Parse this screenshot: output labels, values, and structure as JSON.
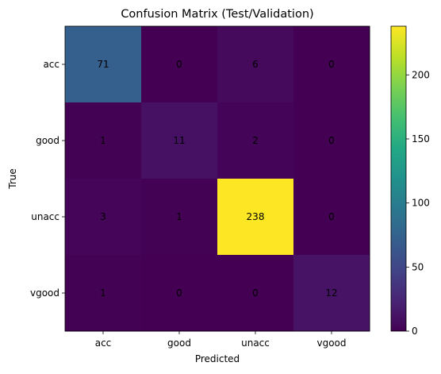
{
  "chart_data": {
    "type": "heatmap",
    "title": "Confusion Matrix (Test/Validation)",
    "xlabel": "Predicted",
    "ylabel": "True",
    "x_categories": [
      "acc",
      "good",
      "unacc",
      "vgood"
    ],
    "y_categories": [
      "acc",
      "good",
      "unacc",
      "vgood"
    ],
    "values": [
      [
        71,
        0,
        6,
        0
      ],
      [
        1,
        11,
        2,
        0
      ],
      [
        3,
        1,
        238,
        0
      ],
      [
        1,
        0,
        0,
        12
      ]
    ],
    "colormap": "viridis",
    "colorbar": {
      "range": [
        0,
        238
      ],
      "ticks": [
        0,
        50,
        100,
        150,
        200
      ]
    },
    "grid": false
  }
}
